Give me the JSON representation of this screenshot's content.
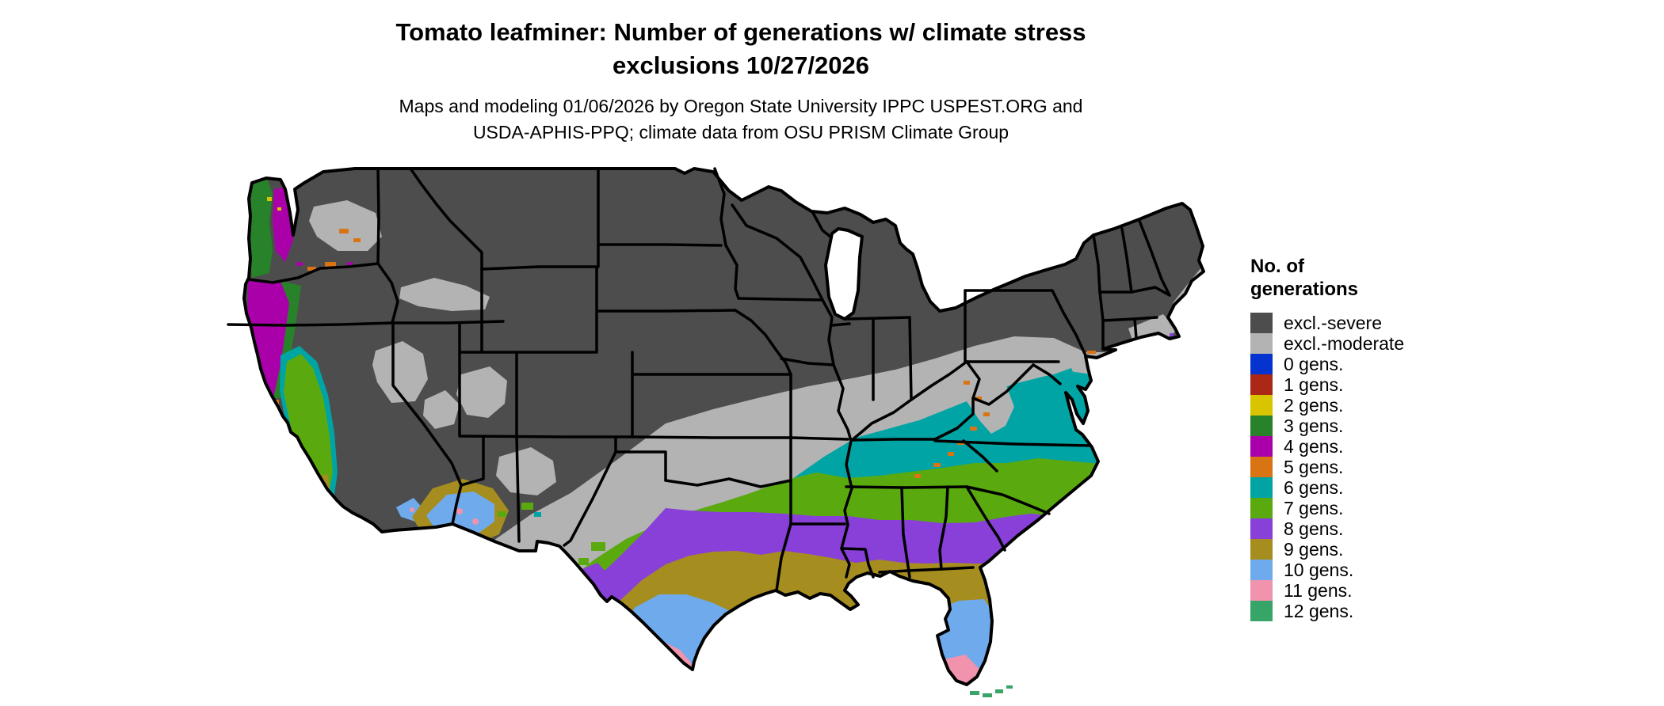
{
  "title": {
    "line1": "Tomato leafminer: Number of generations w/ climate stress",
    "line2": "exclusions 10/27/2026"
  },
  "subtitle": {
    "line1": "Maps and modeling 01/06/2026 by Oregon State University IPPC USPEST.ORG and",
    "line2": "USDA-APHIS-PPQ; climate data from OSU PRISM Climate Group"
  },
  "legend": {
    "title_line1": "No. of",
    "title_line2": "generations",
    "items": [
      {
        "id": "excl-severe",
        "label": "excl.-severe",
        "color": "#4d4d4d"
      },
      {
        "id": "excl-moderate",
        "label": "excl.-moderate",
        "color": "#b3b3b3"
      },
      {
        "id": "g0",
        "label": "0 gens.",
        "color": "#0433cf"
      },
      {
        "id": "g1",
        "label": "1 gens.",
        "color": "#aa2815"
      },
      {
        "id": "g2",
        "label": "2 gens.",
        "color": "#d9c400"
      },
      {
        "id": "g3",
        "label": "3 gens.",
        "color": "#27822a"
      },
      {
        "id": "g4",
        "label": "4 gens.",
        "color": "#aa00aa"
      },
      {
        "id": "g5",
        "label": "5 gens.",
        "color": "#d97415"
      },
      {
        "id": "g6",
        "label": "6 gens.",
        "color": "#00a4a4"
      },
      {
        "id": "g7",
        "label": "7 gens.",
        "color": "#5aaa0f"
      },
      {
        "id": "g8",
        "label": "8 gens.",
        "color": "#8840d8"
      },
      {
        "id": "g9",
        "label": "9 gens.",
        "color": "#a68d20"
      },
      {
        "id": "g10",
        "label": "10 gens.",
        "color": "#6faaec"
      },
      {
        "id": "g11",
        "label": "11 gens.",
        "color": "#f193ad"
      },
      {
        "id": "g12",
        "label": "12 gens.",
        "color": "#37a567"
      }
    ]
  }
}
